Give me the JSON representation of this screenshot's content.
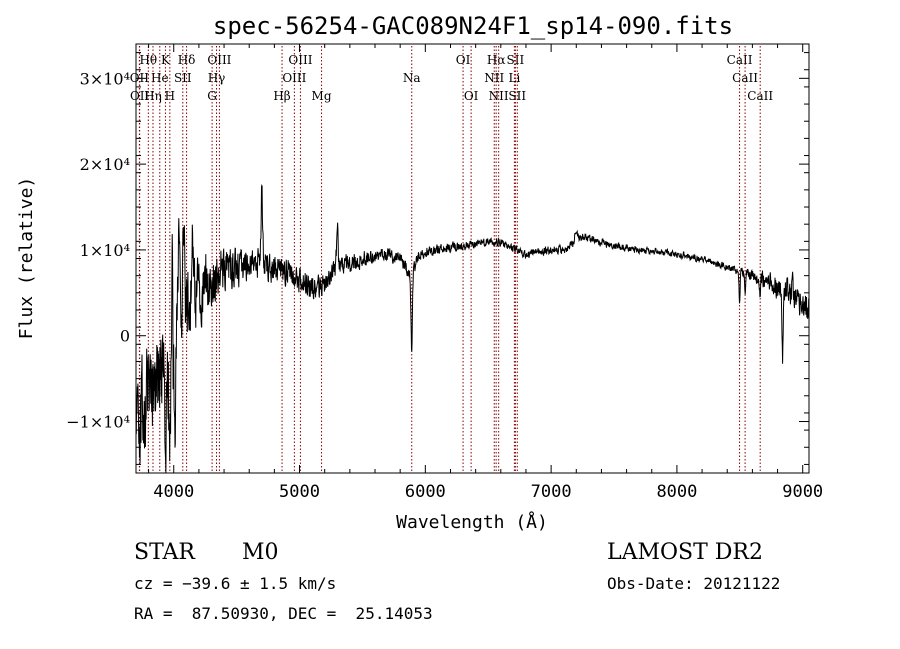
{
  "chart_data": {
    "type": "line",
    "title": "spec-56254-GAC089N24F1_sp14-090.fits",
    "xlabel": "Wavelength (Å)",
    "ylabel": "Flux (relative)",
    "xlim": [
      3700,
      9050
    ],
    "ylim": [
      -16000,
      34000
    ],
    "xticks": [
      4000,
      5000,
      6000,
      7000,
      8000,
      9000
    ],
    "xtick_labels": [
      "4000",
      "5000",
      "6000",
      "7000",
      "8000",
      "9000"
    ],
    "yticks": [
      -10000,
      0,
      10000,
      20000,
      30000
    ],
    "ytick_labels": [
      "−1×10⁴",
      "0",
      "1×10⁴",
      "2×10⁴",
      "3×10⁴"
    ],
    "line_color": "#000000",
    "marker_color": "#8b0000",
    "spectrum_knots": {
      "x": [
        3700,
        3800,
        3900,
        4000,
        4100,
        4200,
        4300,
        4400,
        4500,
        4600,
        4700,
        4800,
        4900,
        5000,
        5100,
        5200,
        5300,
        5500,
        5700,
        5800,
        5892,
        5950,
        6100,
        6300,
        6500,
        6563,
        6650,
        6800,
        7000,
        7100,
        7250,
        7500,
        7700,
        8000,
        8200,
        8400,
        8500,
        8600,
        8700,
        8800,
        8900,
        9000,
        9050
      ],
      "y": [
        -10000,
        -7000,
        -3000,
        1000,
        3000,
        5000,
        6500,
        7500,
        8000,
        8300,
        8500,
        8000,
        7500,
        6500,
        5500,
        6000,
        8000,
        9000,
        9500,
        9000,
        7000,
        9500,
        10000,
        10500,
        11000,
        11000,
        10500,
        9500,
        10000,
        10000,
        11500,
        10500,
        10000,
        9500,
        9000,
        8000,
        7500,
        7000,
        6500,
        5500,
        5000,
        3500,
        3000
      ]
    },
    "spectrum_noise": {
      "x": [
        3700,
        4000,
        4300,
        4600,
        5000,
        5500,
        6000,
        6600,
        7000,
        8000,
        8500,
        8800,
        9050
      ],
      "amp": [
        9000,
        8000,
        4500,
        2500,
        2000,
        1300,
        900,
        600,
        700,
        500,
        600,
        1800,
        2500
      ]
    },
    "spectrum_dips": [
      {
        "x": 5892,
        "depth": 8500,
        "width": 8
      },
      {
        "x": 8498,
        "depth": 3500,
        "width": 6
      },
      {
        "x": 8542,
        "depth": 2500,
        "width": 6
      },
      {
        "x": 8662,
        "depth": 1500,
        "width": 6
      },
      {
        "x": 8840,
        "depth": 8000,
        "width": 6
      },
      {
        "x": 4000,
        "depth": 15000,
        "width": 15
      },
      {
        "x": 3933,
        "depth": 12000,
        "width": 10
      },
      {
        "x": 3968,
        "depth": 12000,
        "width": 10
      }
    ],
    "spectrum_spikes": [
      {
        "x": 3990,
        "height": 22000,
        "width": 10
      },
      {
        "x": 4040,
        "height": 20000,
        "width": 10
      },
      {
        "x": 4080,
        "height": 14000,
        "width": 10
      },
      {
        "x": 4150,
        "height": 8000,
        "width": 12
      },
      {
        "x": 4700,
        "height": 9000,
        "width": 8
      },
      {
        "x": 5300,
        "height": 6000,
        "width": 8
      },
      {
        "x": 7200,
        "height": 2000,
        "width": 15
      },
      {
        "x": 8920,
        "height": 3000,
        "width": 8
      }
    ],
    "line_markers": [
      {
        "label": "Hθ",
        "x": 3798,
        "row": 0
      },
      {
        "label": "K",
        "x": 3934,
        "row": 0
      },
      {
        "label": "Hδ",
        "x": 4102,
        "row": 0
      },
      {
        "label": "OIII",
        "x": 4363,
        "row": 0
      },
      {
        "label": "OIII",
        "x": 5007,
        "row": 0
      },
      {
        "label": "OI",
        "x": 6300,
        "row": 0
      },
      {
        "label": "Hα",
        "x": 6563,
        "row": 0
      },
      {
        "label": "SII",
        "x": 6716,
        "row": 0
      },
      {
        "label": "CaII",
        "x": 8498,
        "row": 0
      },
      {
        "label": "OII",
        "x": 3727,
        "row": 1
      },
      {
        "label": "He",
        "x": 3889,
        "row": 1
      },
      {
        "label": "SII",
        "x": 4072,
        "row": 1
      },
      {
        "label": "Hγ",
        "x": 4340,
        "row": 1
      },
      {
        "label": "OIII",
        "x": 4959,
        "row": 1
      },
      {
        "label": "Na",
        "x": 5892,
        "row": 1
      },
      {
        "label": "NII",
        "x": 6548,
        "row": 1
      },
      {
        "label": "Li",
        "x": 6708,
        "row": 1
      },
      {
        "label": "CaII",
        "x": 8542,
        "row": 1
      },
      {
        "label": "OII",
        "x": 3729,
        "row": 2
      },
      {
        "label": "Hη",
        "x": 3835,
        "row": 2
      },
      {
        "label": "H",
        "x": 3969,
        "row": 2
      },
      {
        "label": "G",
        "x": 4305,
        "row": 2
      },
      {
        "label": "Hβ",
        "x": 4861,
        "row": 2
      },
      {
        "label": "Mg",
        "x": 5175,
        "row": 2
      },
      {
        "label": "OI",
        "x": 6364,
        "row": 2
      },
      {
        "label": "NII",
        "x": 6583,
        "row": 2
      },
      {
        "label": "SII",
        "x": 6731,
        "row": 2
      },
      {
        "label": "CaII",
        "x": 8662,
        "row": 2
      }
    ]
  },
  "info": {
    "object_class": "STAR",
    "subclass": "M0",
    "survey": "LAMOST DR2",
    "cz": "cz = −39.6 ± 1.5 km/s",
    "obs_date": "Obs-Date: 20121122",
    "coords": "RA =  87.50930, DEC =  25.14053"
  }
}
